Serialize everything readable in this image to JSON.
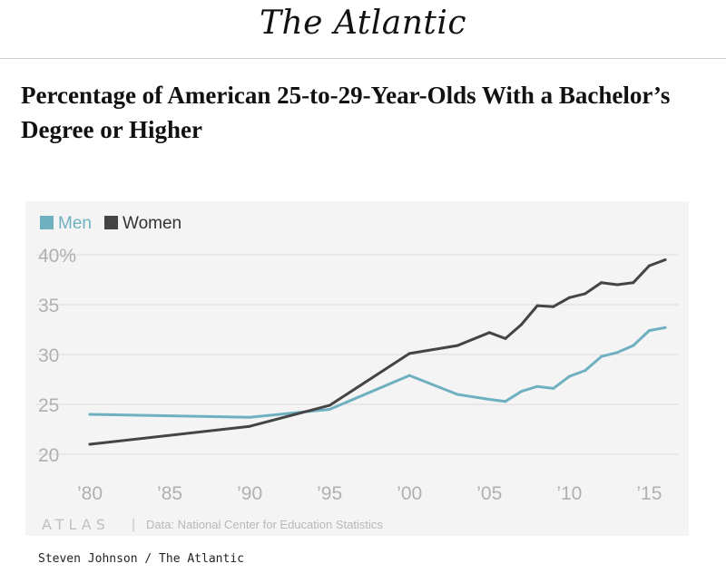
{
  "header": {
    "publication": "The Atlantic"
  },
  "headline": "Percentage of American 25-to-29-Year-Olds With a Bachelor’s Degree or Higher",
  "credit": "Steven Johnson / The Atlantic",
  "chart_data": {
    "type": "line",
    "title": "",
    "xlabel": "",
    "ylabel": "",
    "xlim": [
      1980,
      2016
    ],
    "ylim": [
      20,
      40
    ],
    "x_ticks": [
      {
        "value": 1980,
        "label": "’80"
      },
      {
        "value": 1985,
        "label": "’85"
      },
      {
        "value": 1990,
        "label": "’90"
      },
      {
        "value": 1995,
        "label": "’95"
      },
      {
        "value": 2000,
        "label": "’00"
      },
      {
        "value": 2005,
        "label": "’05"
      },
      {
        "value": 2010,
        "label": "’10"
      },
      {
        "value": 2015,
        "label": "’15"
      }
    ],
    "y_ticks": [
      {
        "value": 20,
        "label": "20"
      },
      {
        "value": 25,
        "label": "25"
      },
      {
        "value": 30,
        "label": "30"
      },
      {
        "value": 35,
        "label": "35"
      },
      {
        "value": 40,
        "label": "40%"
      }
    ],
    "grid": true,
    "legend_position": "top-left",
    "series": [
      {
        "name": "Men",
        "color": "#6fb0c0",
        "points": [
          [
            1980,
            24.0
          ],
          [
            1990,
            23.7
          ],
          [
            1995,
            24.5
          ],
          [
            2000,
            27.9
          ],
          [
            2003,
            26.0
          ],
          [
            2005,
            25.5
          ],
          [
            2006,
            25.3
          ],
          [
            2007,
            26.3
          ],
          [
            2008,
            26.8
          ],
          [
            2009,
            26.6
          ],
          [
            2010,
            27.8
          ],
          [
            2011,
            28.4
          ],
          [
            2012,
            29.8
          ],
          [
            2013,
            30.2
          ],
          [
            2014,
            30.9
          ],
          [
            2015,
            32.4
          ],
          [
            2016,
            32.7
          ]
        ]
      },
      {
        "name": "Women",
        "color": "#444444",
        "points": [
          [
            1980,
            21.0
          ],
          [
            1990,
            22.8
          ],
          [
            1995,
            24.9
          ],
          [
            2000,
            30.1
          ],
          [
            2003,
            30.9
          ],
          [
            2005,
            32.2
          ],
          [
            2006,
            31.6
          ],
          [
            2007,
            33.0
          ],
          [
            2008,
            34.9
          ],
          [
            2009,
            34.8
          ],
          [
            2010,
            35.7
          ],
          [
            2011,
            36.1
          ],
          [
            2012,
            37.2
          ],
          [
            2013,
            37.0
          ],
          [
            2014,
            37.2
          ],
          [
            2015,
            38.9
          ],
          [
            2016,
            39.5
          ]
        ]
      }
    ],
    "footer": {
      "brand": "ATLAS",
      "separator": "|",
      "source": "Data: National Center for Education Statistics"
    }
  }
}
